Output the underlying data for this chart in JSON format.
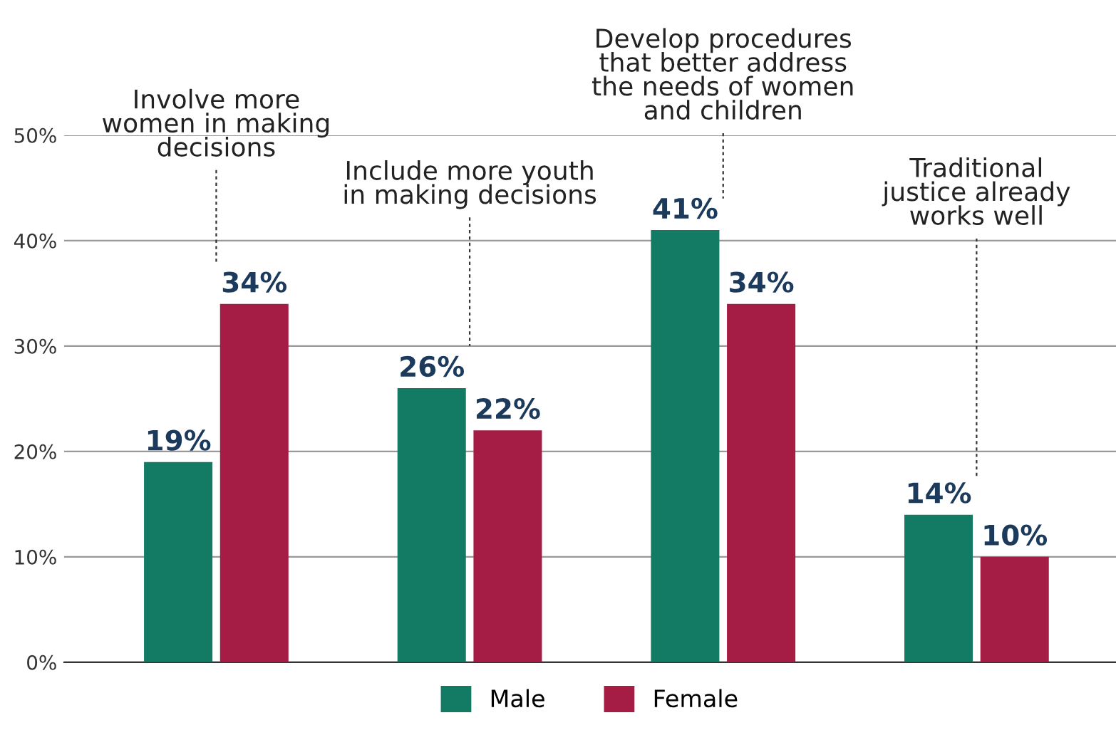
{
  "chart_data": {
    "type": "bar",
    "categories": [
      "Involve more\nwomen in making\ndecisions",
      "Include more youth\nin making decisions",
      "Develop procedures\nthat better address\nthe needs of women\nand children",
      "Traditional\njustice already\nworks well"
    ],
    "series": [
      {
        "name": "Male",
        "color": "#137a63",
        "values": [
          19,
          26,
          41,
          14
        ],
        "value_labels": [
          "19%",
          "26%",
          "41%",
          "14%"
        ]
      },
      {
        "name": "Female",
        "color": "#a51c45",
        "values": [
          34,
          22,
          34,
          10
        ],
        "value_labels": [
          "34%",
          "22%",
          "34%",
          "10%"
        ]
      }
    ],
    "ylim": [
      0,
      50
    ],
    "yticks": [
      {
        "value": 0,
        "label": "0%"
      },
      {
        "value": 10,
        "label": "10%"
      },
      {
        "value": 20,
        "label": "20%"
      },
      {
        "value": 30,
        "label": "30%"
      },
      {
        "value": 40,
        "label": "40%"
      },
      {
        "value": 50,
        "label": "50%"
      }
    ],
    "grid": "y",
    "legend": "bottom"
  }
}
